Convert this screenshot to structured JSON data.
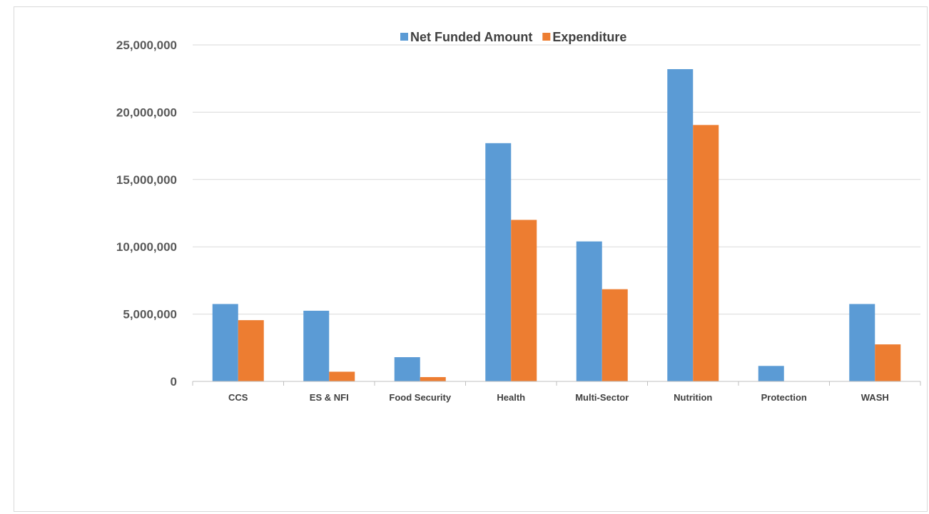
{
  "chart_data": {
    "type": "bar",
    "title": "",
    "xlabel": "",
    "ylabel": "",
    "categories": [
      "CCS",
      "ES & NFI",
      "Food Security",
      "Health",
      "Multi-Sector",
      "Nutrition",
      "Protection",
      "WASH"
    ],
    "series": [
      {
        "name": "Net Funded Amount",
        "color": "#5b9bd5",
        "values": [
          5750000,
          5250000,
          1800000,
          17700000,
          10400000,
          23200000,
          1150000,
          5750000
        ]
      },
      {
        "name": "Expenditure",
        "color": "#ed7d31",
        "values": [
          4550000,
          720000,
          320000,
          12000000,
          6850000,
          19050000,
          0,
          2750000
        ]
      }
    ],
    "ylim": [
      0,
      25000000
    ],
    "yticks": [
      0,
      5000000,
      10000000,
      15000000,
      20000000,
      25000000
    ],
    "ytick_labels": [
      "0",
      "5,000,000",
      "10,000,000",
      "15,000,000",
      "20,000,000",
      "25,000,000"
    ],
    "grid": true,
    "legend_position": "top"
  }
}
